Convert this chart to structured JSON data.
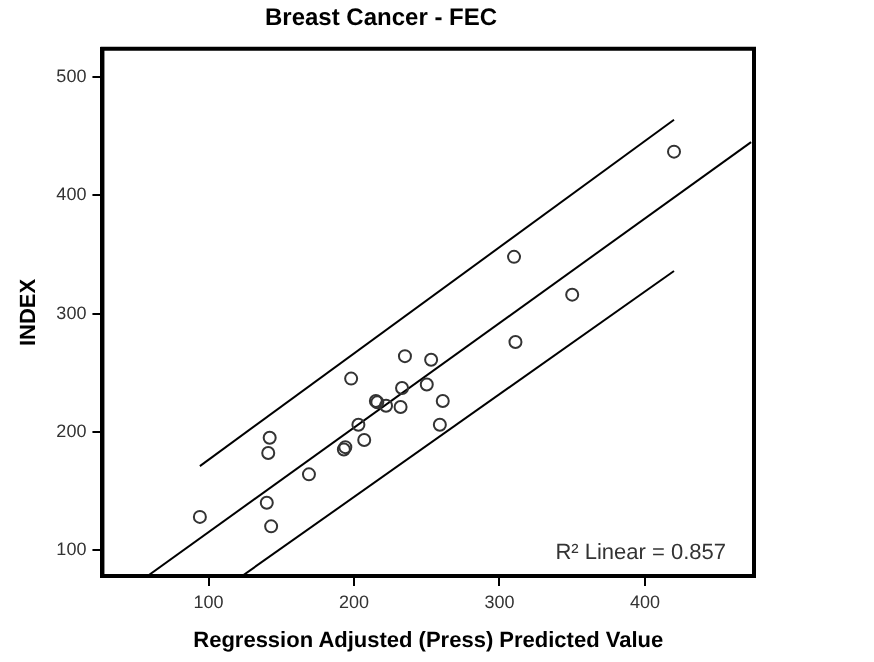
{
  "chart_data": {
    "type": "scatter",
    "title": "Breast Cancer - FEC",
    "xlabel": "Regression Adjusted (Press) Predicted Value",
    "ylabel": "INDEX",
    "xlim": [
      27,
      475
    ],
    "xticks": [
      100,
      200,
      300,
      400
    ],
    "ylim": [
      78,
      524
    ],
    "yticks": [
      100,
      200,
      300,
      400,
      500
    ],
    "grid": false,
    "legend": false,
    "marker": "circle",
    "annotations": [
      "R² Linear = 0.857"
    ],
    "series": [
      {
        "color": "#333333",
        "x": [
          94,
          142,
          141,
          140,
          143,
          169,
          193,
          194,
          198,
          203,
          207,
          215,
          216,
          222,
          232,
          233,
          235,
          250,
          253,
          261,
          259,
          310,
          350,
          311,
          420
        ],
        "values": [
          128,
          195,
          182,
          140,
          120,
          164,
          185,
          187,
          245,
          206,
          193,
          226,
          225,
          222,
          221,
          237,
          264,
          240,
          261,
          226,
          206,
          348,
          316,
          276,
          437
        ]
      },
      {
        "type": "line",
        "color": "#000000",
        "marker": "none",
        "x": [
          58,
          473
        ],
        "values": [
          78,
          445
        ]
      },
      {
        "type": "line",
        "color": "#000000",
        "marker": "none",
        "x": [
          94,
          420
        ],
        "values": [
          171,
          464
        ]
      },
      {
        "type": "line",
        "color": "#000000",
        "marker": "none",
        "x": [
          123,
          420
        ],
        "values": [
          78,
          336
        ]
      }
    ]
  }
}
